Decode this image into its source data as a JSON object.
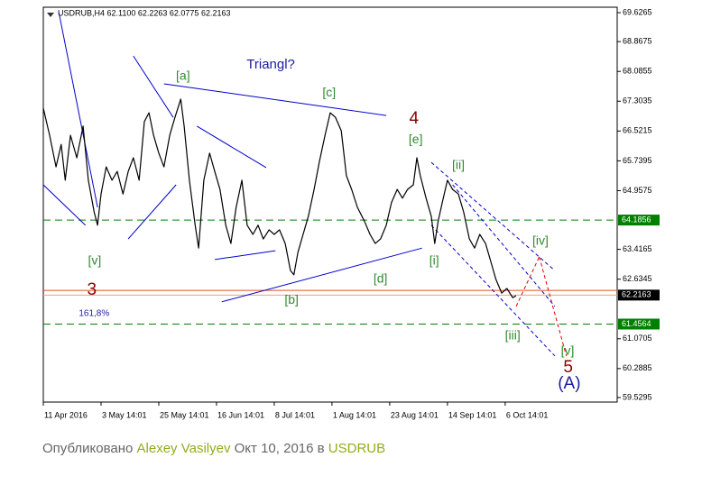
{
  "chart_data": {
    "type": "line",
    "title": "USDRUB,H4  62.1100 62.2263 62.0775 62.2163",
    "x": [
      0,
      0.11,
      0.22,
      0.31,
      0.38,
      0.47,
      0.58,
      0.69,
      0.78,
      0.88,
      0.94,
      1.0,
      1.09,
      1.19,
      1.28,
      1.38,
      1.47,
      1.56,
      1.66,
      1.75,
      1.83,
      1.91,
      2.0,
      2.09,
      2.19,
      2.28,
      2.38,
      2.44,
      2.53,
      2.63,
      2.69,
      2.78,
      2.88,
      2.97,
      3.06,
      3.16,
      3.25,
      3.34,
      3.44,
      3.53,
      3.63,
      3.72,
      3.81,
      3.91,
      4.0,
      4.09,
      4.19,
      4.28,
      4.34,
      4.41,
      4.5,
      4.59,
      4.69,
      4.78,
      4.88,
      4.97,
      5.06,
      5.16,
      5.25,
      5.34,
      5.44,
      5.56,
      5.66,
      5.75,
      5.84,
      5.94,
      6.03,
      6.13,
      6.22,
      6.31,
      6.41,
      6.47,
      6.53,
      6.63,
      6.72,
      6.78,
      6.84,
      6.91,
      7.0,
      7.09,
      7.19,
      7.28,
      7.38,
      7.47,
      7.56,
      7.66,
      7.75,
      7.84,
      7.94,
      8.03,
      8.13,
      8.19
    ],
    "series": [
      {
        "color": "#000000",
        "values": [
          67.12,
          66.41,
          65.58,
          66.17,
          65.23,
          66.41,
          65.82,
          66.65,
          65.23,
          64.4,
          64.05,
          64.87,
          65.58,
          65.23,
          65.46,
          64.87,
          65.46,
          65.82,
          65.23,
          66.77,
          67.0,
          66.41,
          65.94,
          65.58,
          66.41,
          66.88,
          67.36,
          66.65,
          65.23,
          64.05,
          63.45,
          65.23,
          65.94,
          65.46,
          64.99,
          64.05,
          63.57,
          64.52,
          65.23,
          64.05,
          63.81,
          64.05,
          63.69,
          63.93,
          63.81,
          63.93,
          63.57,
          62.86,
          62.75,
          63.34,
          63.81,
          64.28,
          64.99,
          65.7,
          66.41,
          67.0,
          66.88,
          66.53,
          65.35,
          64.99,
          64.52,
          64.16,
          63.81,
          63.57,
          63.69,
          64.05,
          64.64,
          64.99,
          64.76,
          64.99,
          65.11,
          65.82,
          65.35,
          64.76,
          64.28,
          63.57,
          64.16,
          64.64,
          65.23,
          64.99,
          64.87,
          64.4,
          63.69,
          63.45,
          63.81,
          63.57,
          63.1,
          62.63,
          62.27,
          62.39,
          62.15,
          62.2
        ]
      }
    ],
    "xlim": [
      0,
      9.94
    ],
    "xticks": [
      {
        "value": 0,
        "label": "11 Apr 2016"
      },
      {
        "value": 1,
        "label": "3 May 14:01"
      },
      {
        "value": 2,
        "label": "25 May 14:01"
      },
      {
        "value": 3,
        "label": "16 Jun 14:01"
      },
      {
        "value": 4,
        "label": "8 Jul 14:01"
      },
      {
        "value": 5,
        "label": "1 Aug 14:01"
      },
      {
        "value": 6,
        "label": "23 Aug 14:01"
      },
      {
        "value": 7,
        "label": "14 Sep 14:01"
      },
      {
        "value": 8,
        "label": "6 Oct 14:01"
      }
    ],
    "ylim": [
      59.41,
      69.77
    ],
    "yticks": [
      69.6265,
      68.8675,
      68.0855,
      67.3035,
      66.5215,
      65.7395,
      64.9575,
      63.4165,
      62.6345,
      61.0705,
      60.2885,
      59.5295
    ],
    "levels": [
      {
        "value": 64.1856,
        "color": "#008000",
        "dashed": true,
        "box": true
      },
      {
        "value": 62.34,
        "color": "#e0502a",
        "dashed": false,
        "box": false
      },
      {
        "value": 62.2163,
        "color": "#f0a080",
        "dashed": false,
        "box": true,
        "box_color": "#000000"
      },
      {
        "value": 61.4564,
        "color": "#008000",
        "dashed": true,
        "box": true
      }
    ],
    "trendlines": [
      {
        "x": [
          0.27,
          0.94
        ],
        "y": [
          69.63,
          64.52
        ],
        "color": "#0000cc",
        "dashed": false
      },
      {
        "x": [
          0,
          0.73
        ],
        "y": [
          65.11,
          64.05
        ],
        "color": "#0000cc",
        "dashed": false
      },
      {
        "x": [
          1.56,
          2.25
        ],
        "y": [
          68.49,
          66.88
        ],
        "color": "#0000cc",
        "dashed": false
      },
      {
        "x": [
          1.47,
          2.3
        ],
        "y": [
          63.69,
          65.11
        ],
        "color": "#0000cc",
        "dashed": false
      },
      {
        "x": [
          2.09,
          5.94
        ],
        "y": [
          67.76,
          66.93
        ],
        "color": "#0000cc",
        "dashed": false
      },
      {
        "x": [
          2.66,
          3.86
        ],
        "y": [
          66.65,
          65.56
        ],
        "color": "#0000cc",
        "dashed": false
      },
      {
        "x": [
          2.97,
          4.02
        ],
        "y": [
          63.15,
          63.38
        ],
        "color": "#0000cc",
        "dashed": false
      },
      {
        "x": [
          3.09,
          6.56
        ],
        "y": [
          62.04,
          63.45
        ],
        "color": "#0000cc",
        "dashed": false
      },
      {
        "x": [
          6.72,
          8.86
        ],
        "y": [
          65.7,
          62.86
        ],
        "color": "#0000cc",
        "dashed": true
      },
      {
        "x": [
          7.09,
          8.86
        ],
        "y": [
          65.11,
          61.92
        ],
        "color": "#0000cc",
        "dashed": true
      },
      {
        "x": [
          6.72,
          8.86
        ],
        "y": [
          64.05,
          60.62
        ],
        "color": "#0000cc",
        "dashed": true
      },
      {
        "x": [
          8.19,
          8.59
        ],
        "y": [
          61.92,
          63.22
        ],
        "color": "#e00000",
        "dashed": true
      },
      {
        "x": [
          8.59,
          9.06
        ],
        "y": [
          63.22,
          60.62
        ],
        "color": "#e00000",
        "dashed": true
      }
    ],
    "annotations": [
      {
        "text": "Triangl?",
        "x": 3.94,
        "y": 68.26,
        "color": "#1a1aa0",
        "kind": "note"
      },
      {
        "text": "[a]",
        "x": 2.42,
        "y": 67.95,
        "color": "#2e8b2e",
        "kind": "minor"
      },
      {
        "text": "[c]",
        "x": 4.95,
        "y": 67.52,
        "color": "#2e8b2e",
        "kind": "minor"
      },
      {
        "text": "4",
        "x": 6.42,
        "y": 66.84,
        "color": "#8b0000",
        "kind": "major"
      },
      {
        "text": "[e]",
        "x": 6.45,
        "y": 66.29,
        "color": "#2e8b2e",
        "kind": "minor"
      },
      {
        "text": "[ii]",
        "x": 7.19,
        "y": 65.61,
        "color": "#2e8b2e",
        "kind": "minor"
      },
      {
        "text": "[iv]",
        "x": 8.61,
        "y": 63.62,
        "color": "#2e8b2e",
        "kind": "minor"
      },
      {
        "text": "[i]",
        "x": 6.77,
        "y": 63.1,
        "color": "#2e8b2e",
        "kind": "minor"
      },
      {
        "text": "[d]",
        "x": 5.84,
        "y": 62.63,
        "color": "#2e8b2e",
        "kind": "minor"
      },
      {
        "text": "[b]",
        "x": 4.3,
        "y": 62.08,
        "color": "#2e8b2e",
        "kind": "minor"
      },
      {
        "text": "[v]",
        "x": 0.89,
        "y": 63.1,
        "color": "#2e8b2e",
        "kind": "minor"
      },
      {
        "text": "3",
        "x": 0.84,
        "y": 62.34,
        "color": "#8b0000",
        "kind": "major"
      },
      {
        "text": "161,8%",
        "x": 0.88,
        "y": 61.73,
        "color": "#1a1aa0",
        "kind": "small"
      },
      {
        "text": "[iii]",
        "x": 8.13,
        "y": 61.14,
        "color": "#2e8b2e",
        "kind": "minor"
      },
      {
        "text": "[v]",
        "x": 9.08,
        "y": 60.74,
        "color": "#2e8b2e",
        "kind": "minor"
      },
      {
        "text": "5",
        "x": 9.09,
        "y": 60.31,
        "color": "#8b0000",
        "kind": "major"
      },
      {
        "text": "(A)",
        "x": 9.11,
        "y": 59.88,
        "color": "#1a1aa0",
        "kind": "major"
      }
    ]
  },
  "footer": {
    "published": "Опубликовано",
    "author": "Alexey Vasilyev",
    "date": "Окт 10, 2016 в",
    "symbol": "USDRUB"
  }
}
